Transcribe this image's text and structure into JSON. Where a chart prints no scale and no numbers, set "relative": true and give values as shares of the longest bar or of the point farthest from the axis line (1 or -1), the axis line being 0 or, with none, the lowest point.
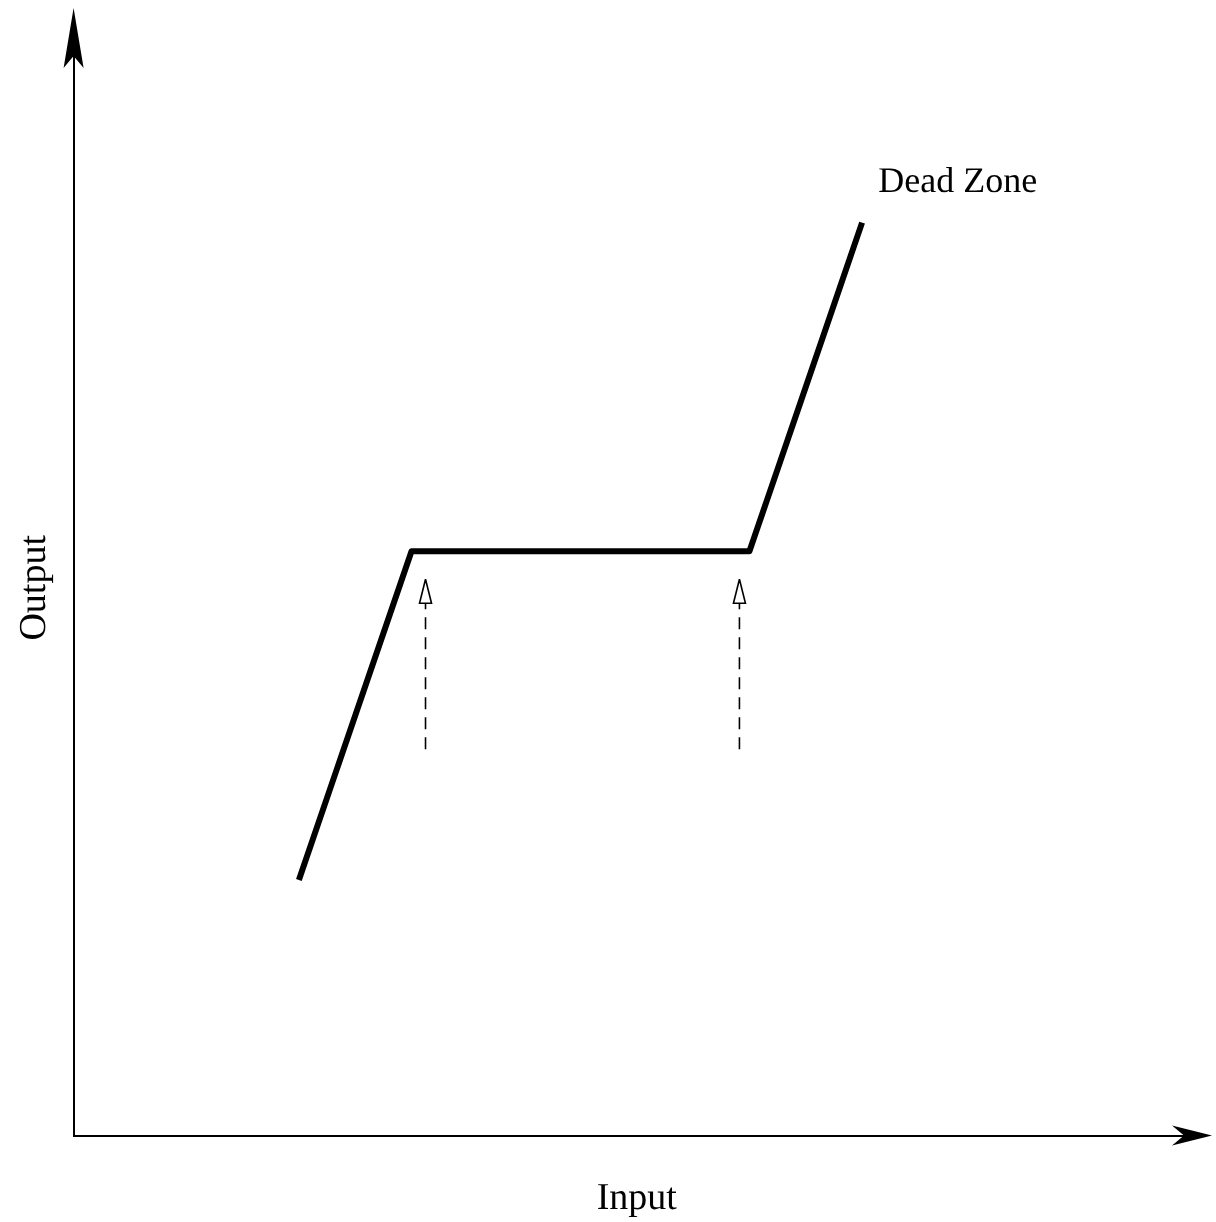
{
  "chart_data": {
    "type": "line",
    "xlabel": "Input",
    "ylabel": "Output",
    "annotations": [
      "Dead Zone"
    ],
    "relative": true,
    "grid": false,
    "legend": false,
    "marker": "none",
    "line_style": "solid",
    "categories": [
      null,
      null,
      null,
      null,
      null,
      null,
      null,
      null,
      null,
      null,
      null,
      null,
      null,
      null,
      null,
      null,
      null,
      null,
      null,
      null,
      null,
      null,
      null,
      null,
      null,
      null,
      null,
      null,
      null,
      null,
      null
    ],
    "series": [
      {
        "color": "#000000",
        "values": [
          null,
          null,
          null,
          null,
          null,
          null,
          0.28,
          0.4,
          0.52,
          0.64,
          0.64,
          0.64,
          0.64,
          0.64,
          0.64,
          0.64,
          0.64,
          0.64,
          0.64,
          0.76,
          0.88,
          1,
          null,
          null,
          null,
          null,
          null,
          null,
          null,
          null,
          null
        ]
      }
    ]
  }
}
